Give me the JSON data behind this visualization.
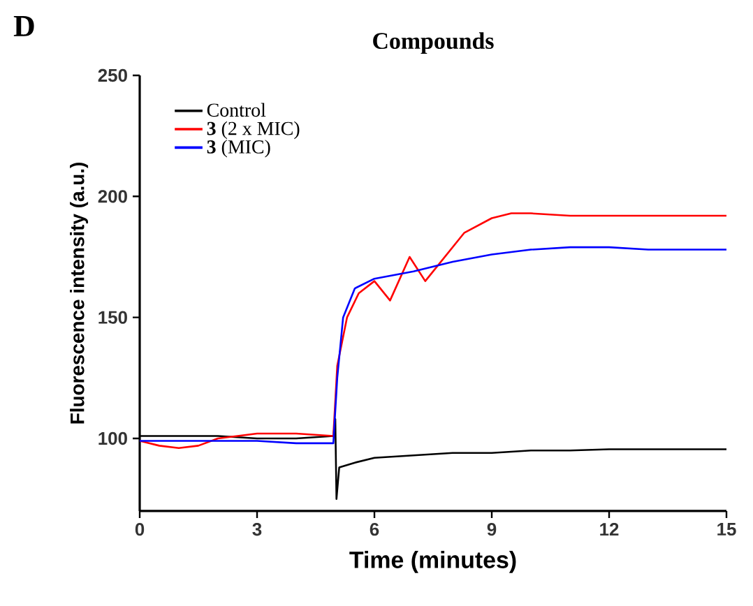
{
  "chart_data": {
    "type": "line",
    "title": "Compounds",
    "xlabel": "Time (minutes)",
    "ylabel": "Fluorescence intensity (a.u.)",
    "annotations": [
      "D"
    ],
    "xlim": [
      0,
      15
    ],
    "ylim": [
      70,
      250
    ],
    "xticks": [
      0,
      3,
      6,
      9,
      12,
      15
    ],
    "yticks": [
      100,
      150,
      200,
      250
    ],
    "legend": "top left",
    "grid": false,
    "marker": "none",
    "line_style": "solid",
    "series": [
      {
        "name": "Control",
        "color": "#000000",
        "x": [
          0,
          1,
          2,
          3,
          4,
          4.95,
          5.0,
          5.03,
          5.1,
          5.5,
          6,
          7,
          8,
          9,
          10,
          11,
          12,
          13,
          14,
          15
        ],
        "values": [
          101,
          101,
          101,
          100,
          100,
          101,
          108,
          75,
          88,
          90,
          92,
          93,
          94,
          94,
          95,
          95,
          95.5,
          95.5,
          95.5,
          95.5
        ]
      },
      {
        "name": "**3** (2 x MIC)",
        "color": "#ff0000",
        "x": [
          0,
          0.5,
          1,
          1.5,
          2,
          3,
          4,
          4.95,
          5.05,
          5.3,
          5.6,
          6,
          6.4,
          6.9,
          7.3,
          7.8,
          8.3,
          9,
          9.5,
          10,
          11,
          12,
          13,
          14,
          15
        ],
        "values": [
          99,
          97,
          96,
          97,
          100,
          102,
          102,
          101,
          130,
          150,
          160,
          165,
          157,
          175,
          165,
          175,
          185,
          191,
          193,
          193,
          192,
          192,
          192,
          192,
          192
        ]
      },
      {
        "name": "**3** (MIC)",
        "color": "#0000ff",
        "x": [
          0,
          1,
          2,
          3,
          4,
          4.95,
          5.05,
          5.2,
          5.5,
          6,
          7,
          8,
          9,
          10,
          11,
          12,
          13,
          14,
          15
        ],
        "values": [
          99,
          99,
          99,
          99,
          98,
          98,
          125,
          150,
          162,
          166,
          169,
          173,
          176,
          178,
          179,
          179,
          178,
          178,
          178
        ]
      }
    ]
  }
}
